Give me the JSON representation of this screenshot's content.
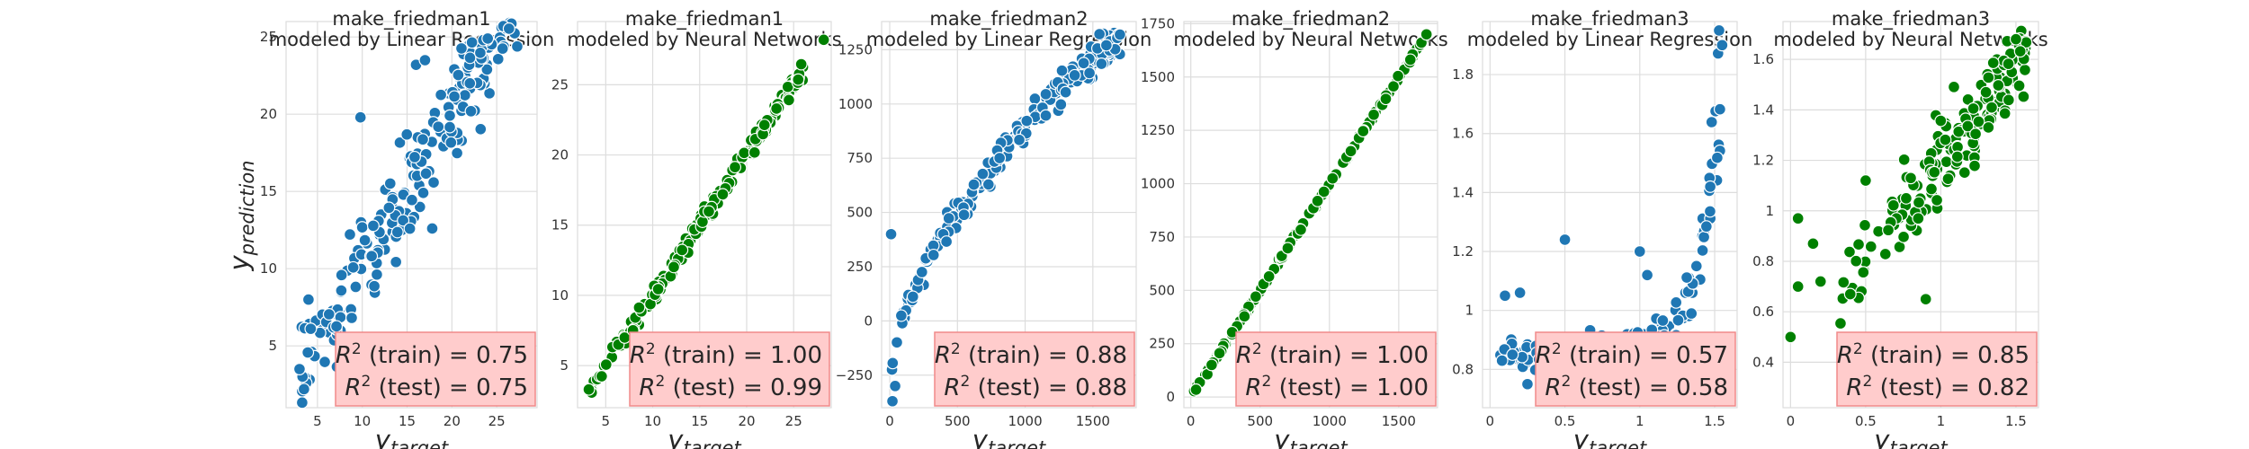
{
  "figure": {
    "xlabel_main": "y",
    "xlabel_sub": "target",
    "ylabel_main": "y",
    "ylabel_sub": "prediction"
  },
  "chart_data": [
    {
      "type": "scatter",
      "title": [
        "make_friedman1",
        "modeled by Linear Regression"
      ],
      "color": "#1f77b4",
      "xlim": [
        1.5,
        29.5
      ],
      "ylim": [
        1,
        26
      ],
      "xticks": [
        5,
        10,
        15,
        20,
        25
      ],
      "yticks": [
        5,
        10,
        15,
        20,
        25
      ],
      "r2_train": "0.75",
      "r2_test": "0.75",
      "curve": "linear",
      "points_range": [
        3,
        28
      ],
      "n_points": 200,
      "noise": 2.4,
      "outliers": [
        [
          9.8,
          19.8
        ],
        [
          16,
          23.2
        ],
        [
          17,
          23.5
        ],
        [
          23.5,
          24.8
        ],
        [
          24,
          24.9
        ],
        [
          22,
          22
        ],
        [
          3,
          3.5
        ],
        [
          3.5,
          2.2
        ],
        [
          4,
          8
        ]
      ]
    },
    {
      "type": "scatter",
      "title": [
        "make_friedman1",
        "modeled by Neural Networks"
      ],
      "color": "#008000",
      "xlim": [
        2,
        29
      ],
      "ylim": [
        2,
        29.5
      ],
      "xticks": [
        5,
        10,
        15,
        20,
        25
      ],
      "yticks": [
        5,
        10,
        15,
        20,
        25
      ],
      "r2_train": "1.00",
      "r2_test": "0.99",
      "curve": "linear",
      "points_range": [
        3,
        26
      ],
      "n_points": 200,
      "noise": 0.5,
      "outliers": [
        [
          28.2,
          28.2
        ],
        [
          3.2,
          3.3
        ]
      ]
    },
    {
      "type": "scatter",
      "title": [
        "make_friedman2",
        "modeled by Linear Regression"
      ],
      "color": "#1f77b4",
      "xlim": [
        -60,
        1820
      ],
      "ylim": [
        -400,
        1380
      ],
      "xticks": [
        0,
        500,
        1000,
        1500
      ],
      "yticks": [
        -250,
        0,
        250,
        500,
        750,
        1000,
        1250
      ],
      "r2_train": "0.88",
      "r2_test": "0.88",
      "curve": "sqrt",
      "points_range": [
        5,
        1700
      ],
      "n_points": 200,
      "noise": 50,
      "outliers": [
        [
          1700,
          1320
        ],
        [
          20,
          -370
        ],
        [
          40,
          -300
        ],
        [
          10,
          400
        ]
      ]
    },
    {
      "type": "scatter",
      "title": [
        "make_friedman2",
        "modeled by Neural Networks"
      ],
      "color": "#008000",
      "xlim": [
        -50,
        1780
      ],
      "ylim": [
        -50,
        1760
      ],
      "xticks": [
        0,
        500,
        1000,
        1500
      ],
      "yticks": [
        0,
        250,
        500,
        750,
        1000,
        1250,
        1500,
        1750
      ],
      "r2_train": "1.00",
      "r2_test": "1.00",
      "curve": "identity",
      "points_range": [
        20,
        1700
      ],
      "n_points": 160,
      "noise": 8,
      "outliers": [
        [
          1700,
          1700
        ]
      ]
    },
    {
      "type": "scatter",
      "title": [
        "make_friedman3",
        "modeled by Linear Regression"
      ],
      "color": "#1f77b4",
      "xlim": [
        -0.05,
        1.65
      ],
      "ylim": [
        0.67,
        1.98
      ],
      "xticks": [
        0.0,
        0.5,
        1.0,
        1.5
      ],
      "yticks": [
        0.8,
        1.0,
        1.2,
        1.4,
        1.6,
        1.8
      ],
      "r2_train": "0.57",
      "r2_test": "0.58",
      "curve": "exp",
      "points_range": [
        0.05,
        1.57
      ],
      "n_points": 200,
      "noise": 0.05,
      "outliers": [
        [
          1.55,
          1.9
        ],
        [
          0.5,
          1.24
        ],
        [
          0.1,
          1.05
        ],
        [
          0.2,
          1.06
        ],
        [
          0.15,
          0.85
        ],
        [
          0.25,
          0.75
        ],
        [
          1.0,
          1.2
        ],
        [
          1.05,
          1.12
        ]
      ]
    },
    {
      "type": "scatter",
      "title": [
        "make_friedman3",
        "modeled by Neural Networks"
      ],
      "color": "#008000",
      "xlim": [
        -0.05,
        1.65
      ],
      "ylim": [
        0.22,
        1.75
      ],
      "xticks": [
        0.0,
        0.5,
        1.0,
        1.5
      ],
      "yticks": [
        0.4,
        0.6,
        0.8,
        1.0,
        1.2,
        1.4,
        1.6
      ],
      "r2_train": "0.85",
      "r2_test": "0.82",
      "curve": "linear01",
      "points_range": [
        0.0,
        1.57
      ],
      "n_points": 170,
      "noise": 0.12,
      "outliers": [
        [
          0.0,
          0.5
        ],
        [
          0.05,
          0.97
        ],
        [
          0.05,
          0.7
        ],
        [
          0.15,
          0.87
        ],
        [
          0.2,
          0.72
        ],
        [
          0.5,
          1.12
        ],
        [
          0.8,
          1.13
        ],
        [
          0.85,
          0.97
        ],
        [
          0.9,
          0.65
        ],
        [
          1.5,
          1.68
        ]
      ]
    }
  ]
}
